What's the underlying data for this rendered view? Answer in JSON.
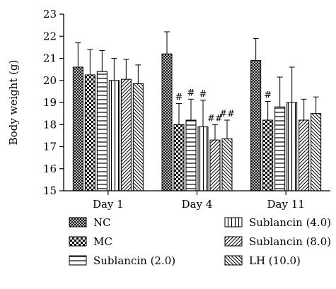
{
  "chart_data": {
    "type": "bar",
    "ylabel": "Body weight (g)",
    "ylim": [
      15,
      23
    ],
    "yticks": [
      "15",
      "16",
      "17",
      "18",
      "19",
      "20",
      "21",
      "22",
      "23"
    ],
    "categories": [
      "Day 1",
      "Day 4",
      "Day 11"
    ],
    "series": [
      {
        "name": "NC",
        "pattern": "crosshatch",
        "values": [
          20.6,
          21.2,
          20.9
        ],
        "errors": [
          1.1,
          1.0,
          1.0
        ],
        "sig": [
          "",
          "",
          ""
        ]
      },
      {
        "name": "MC",
        "pattern": "checker",
        "values": [
          20.25,
          18.0,
          18.2
        ],
        "errors": [
          1.15,
          0.95,
          0.85
        ],
        "sig": [
          "",
          "#",
          "#"
        ]
      },
      {
        "name": "Sublancin (2.0)",
        "pattern": "hlines",
        "values": [
          20.4,
          18.2,
          18.8
        ],
        "errors": [
          0.95,
          0.95,
          1.35
        ],
        "sig": [
          "",
          "#",
          ""
        ]
      },
      {
        "name": "Sublancin (4.0)",
        "pattern": "vlines",
        "values": [
          20.0,
          17.9,
          19.0
        ],
        "errors": [
          1.0,
          1.2,
          1.6
        ],
        "sig": [
          "",
          "#",
          ""
        ]
      },
      {
        "name": "Sublancin (8.0)",
        "pattern": "diag-forward",
        "values": [
          20.05,
          17.3,
          18.2
        ],
        "errors": [
          0.9,
          0.7,
          0.95
        ],
        "sig": [
          "",
          "##",
          ""
        ]
      },
      {
        "name": "LH (10.0)",
        "pattern": "diag-back",
        "values": [
          19.85,
          17.35,
          18.5
        ],
        "errors": [
          0.85,
          0.85,
          0.75
        ],
        "sig": [
          "",
          "##",
          ""
        ]
      }
    ],
    "legend_position": "bottom",
    "grid": false
  }
}
